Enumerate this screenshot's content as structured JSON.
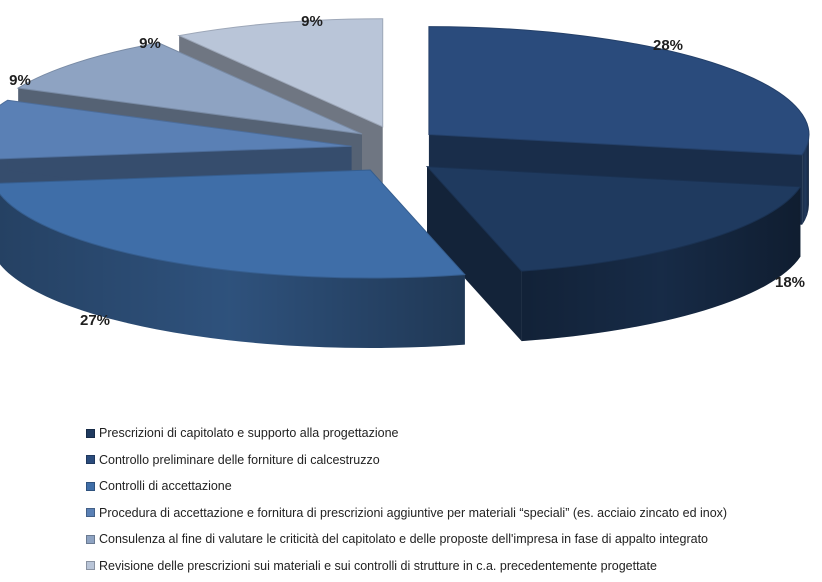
{
  "chart_data": {
    "type": "pie",
    "style": "3d-exploded",
    "legend_position": "bottom",
    "slices": [
      {
        "label": "Prescrizioni di capitolato e supporto alla progettazione",
        "value": 18,
        "display": "18%",
        "color": "#1f3a5f"
      },
      {
        "label": "Controllo preliminare delle forniture di calcestruzzo",
        "value": 28,
        "display": "28%",
        "color": "#2a4b7c"
      },
      {
        "label": "Controlli di accettazione",
        "value": 27,
        "display": "27%",
        "color": "#3f6ea8"
      },
      {
        "label": "Procedura di accettazione e fornitura di prescrizioni aggiuntive per materiali “speciali” (es. acciaio zincato ed inox)",
        "value": 9,
        "display": "9%",
        "color": "#5a80b5"
      },
      {
        "label": "Consulenza al fine di valutare le criticità del capitolato e delle proposte dell'impresa in fase di appalto integrato",
        "value": 9,
        "display": "9%",
        "color": "#8ea3c2"
      },
      {
        "label": "Revisione delle prescrizioni sui materiali e sui controlli di strutture in c.a. precedentemente progettate",
        "value": 9,
        "display": "9%",
        "color": "#b9c5d8"
      }
    ]
  }
}
